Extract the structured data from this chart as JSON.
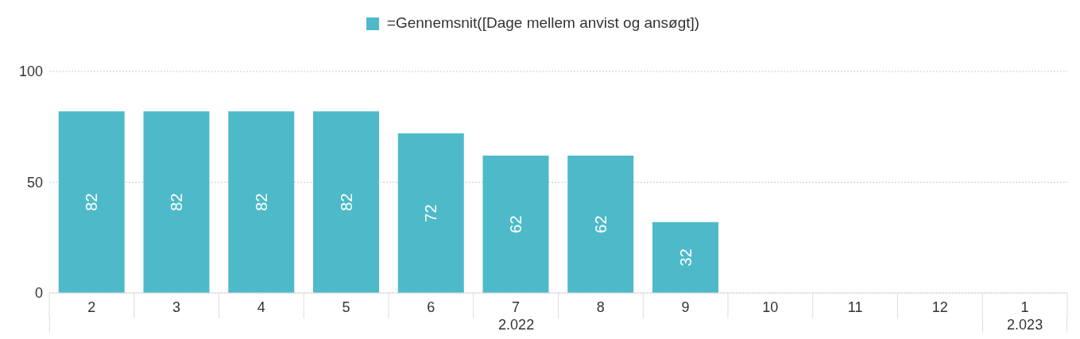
{
  "chart_data": {
    "type": "bar",
    "categories": [
      "2",
      "3",
      "4",
      "5",
      "6",
      "7",
      "8",
      "9",
      "10",
      "11",
      "12",
      "1"
    ],
    "series": [
      {
        "name": "=Gennemsnit([Dage mellem anvist og ansøgt])",
        "color": "#4ebac9",
        "values": [
          82,
          82,
          82,
          82,
          72,
          62,
          62,
          32,
          null,
          null,
          null,
          null
        ]
      }
    ],
    "ylim": [
      0,
      100
    ],
    "yticks": [
      0,
      50,
      100
    ],
    "grid": "y",
    "legend": "top",
    "data_labels": true,
    "annotations": [
      "2.022",
      "2.023"
    ]
  }
}
